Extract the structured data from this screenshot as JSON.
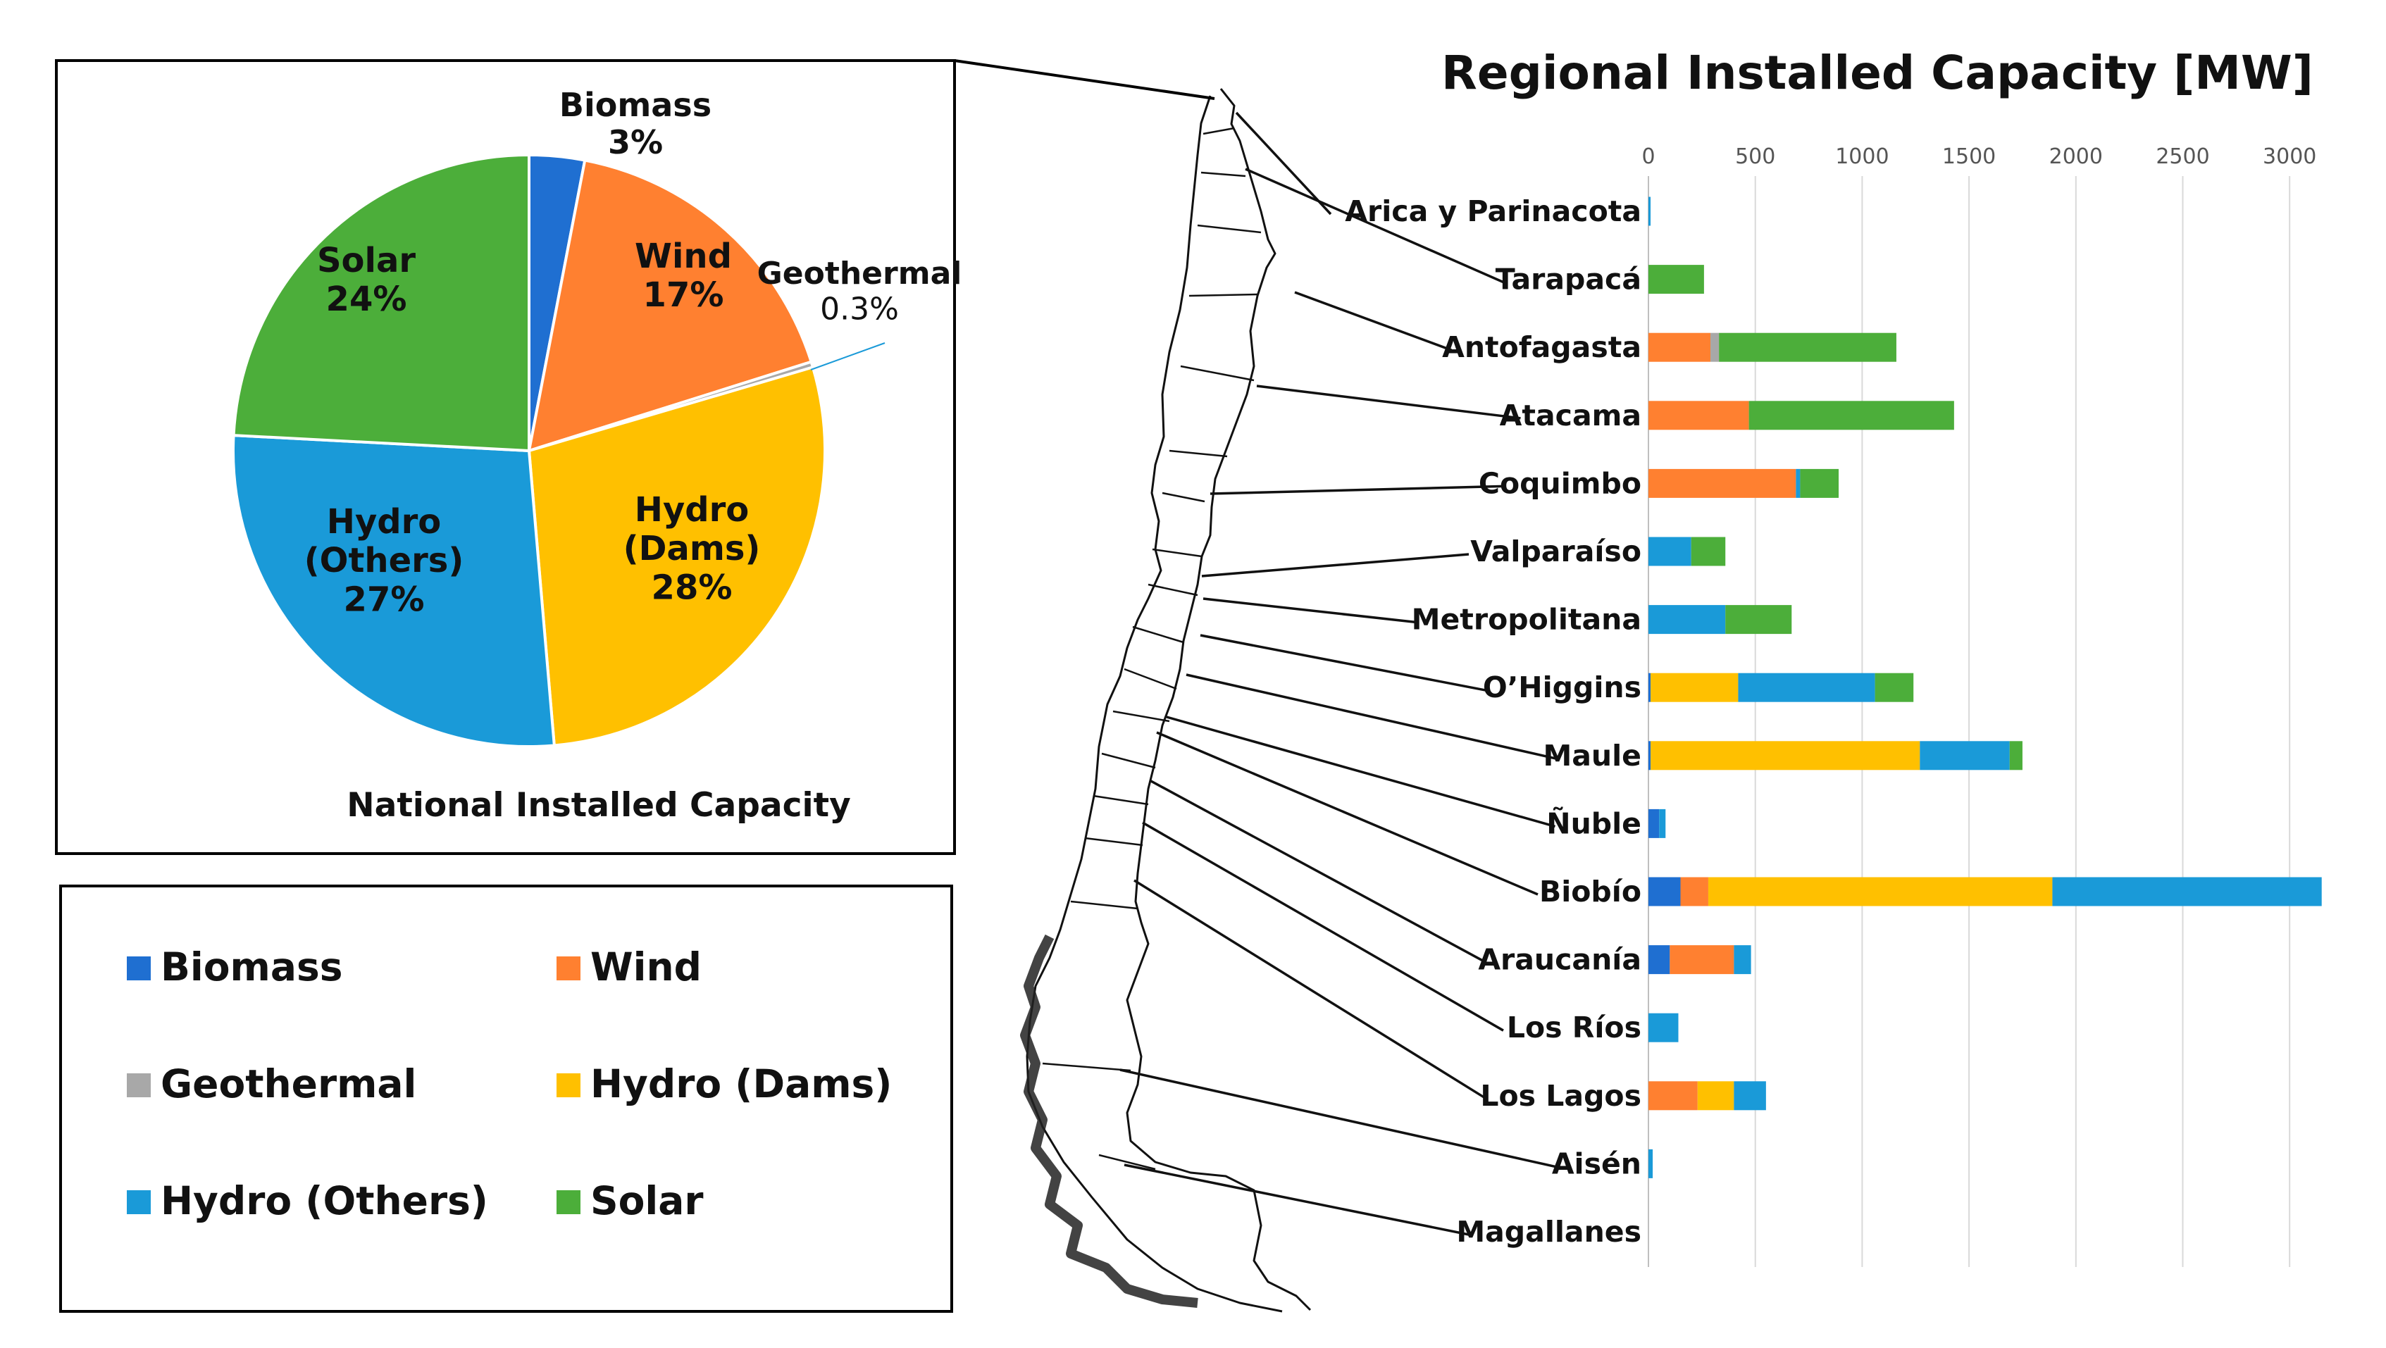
{
  "colors": {
    "Biomass": "#1f6fd1",
    "Wind": "#ff8030",
    "Geothermal": "#a8a8a8",
    "Hydro (Dams)": "#ffc000",
    "Hydro (Others)": "#1a9ad8",
    "Solar": "#4cae3a"
  },
  "chart_data": [
    {
      "type": "pie",
      "title": "National Installed Capacity",
      "slices": [
        {
          "name": "Biomass",
          "label_lines": [
            "Biomass",
            "3%"
          ],
          "value": 3
        },
        {
          "name": "Wind",
          "label_lines": [
            "Wind",
            "17%"
          ],
          "value": 17
        },
        {
          "name": "Geothermal",
          "label_lines": [
            "Geothermal",
            "0.3%"
          ],
          "value": 0.3
        },
        {
          "name": "Hydro (Dams)",
          "label_lines": [
            "Hydro",
            "(Dams)",
            "28%"
          ],
          "value": 28
        },
        {
          "name": "Hydro (Others)",
          "label_lines": [
            "Hydro",
            "(Others)",
            "27%"
          ],
          "value": 27
        },
        {
          "name": "Solar",
          "label_lines": [
            "Solar",
            "24%"
          ],
          "value": 24
        }
      ],
      "legend": {
        "placement": "bottom",
        "entries": [
          "Biomass",
          "Wind",
          "Geothermal",
          "Hydro (Dams)",
          "Hydro (Others)",
          "Solar"
        ]
      }
    },
    {
      "type": "bar",
      "orientation": "horizontal",
      "stacked": true,
      "title": "Regional Installed Capacity [MW]",
      "xlim": [
        0,
        3200
      ],
      "xticks": [
        0,
        500,
        1000,
        1500,
        2000,
        2500,
        3000
      ],
      "grid": true,
      "categories": [
        "Arica y Parinacota",
        "Tarapacá",
        "Antofagasta",
        "Atacama",
        "Coquimbo",
        "Valparaíso",
        "Metropolitana",
        "O’Higgins",
        "Maule",
        "Ñuble",
        "Biobío",
        "Araucanía",
        "Los Ríos",
        "Los Lagos",
        "Aisén",
        "Magallanes"
      ],
      "series": [
        {
          "name": "Biomass",
          "values": [
            0,
            0,
            0,
            0,
            0,
            0,
            0,
            10,
            10,
            50,
            150,
            100,
            0,
            0,
            0,
            0
          ]
        },
        {
          "name": "Wind",
          "values": [
            0,
            0,
            290,
            470,
            690,
            0,
            0,
            0,
            0,
            0,
            130,
            300,
            0,
            230,
            0,
            0
          ]
        },
        {
          "name": "Geothermal",
          "values": [
            0,
            0,
            40,
            0,
            0,
            0,
            0,
            0,
            0,
            0,
            0,
            0,
            0,
            0,
            0,
            0
          ]
        },
        {
          "name": "Hydro (Dams)",
          "values": [
            0,
            0,
            0,
            0,
            0,
            0,
            0,
            410,
            1260,
            0,
            1610,
            0,
            0,
            170,
            0,
            0
          ]
        },
        {
          "name": "Hydro (Others)",
          "values": [
            10,
            0,
            0,
            0,
            20,
            200,
            360,
            640,
            420,
            30,
            1260,
            80,
            140,
            150,
            20,
            0
          ]
        },
        {
          "name": "Solar",
          "values": [
            0,
            260,
            830,
            960,
            180,
            160,
            310,
            180,
            60,
            0,
            0,
            0,
            0,
            0,
            0,
            0
          ]
        }
      ]
    }
  ]
}
